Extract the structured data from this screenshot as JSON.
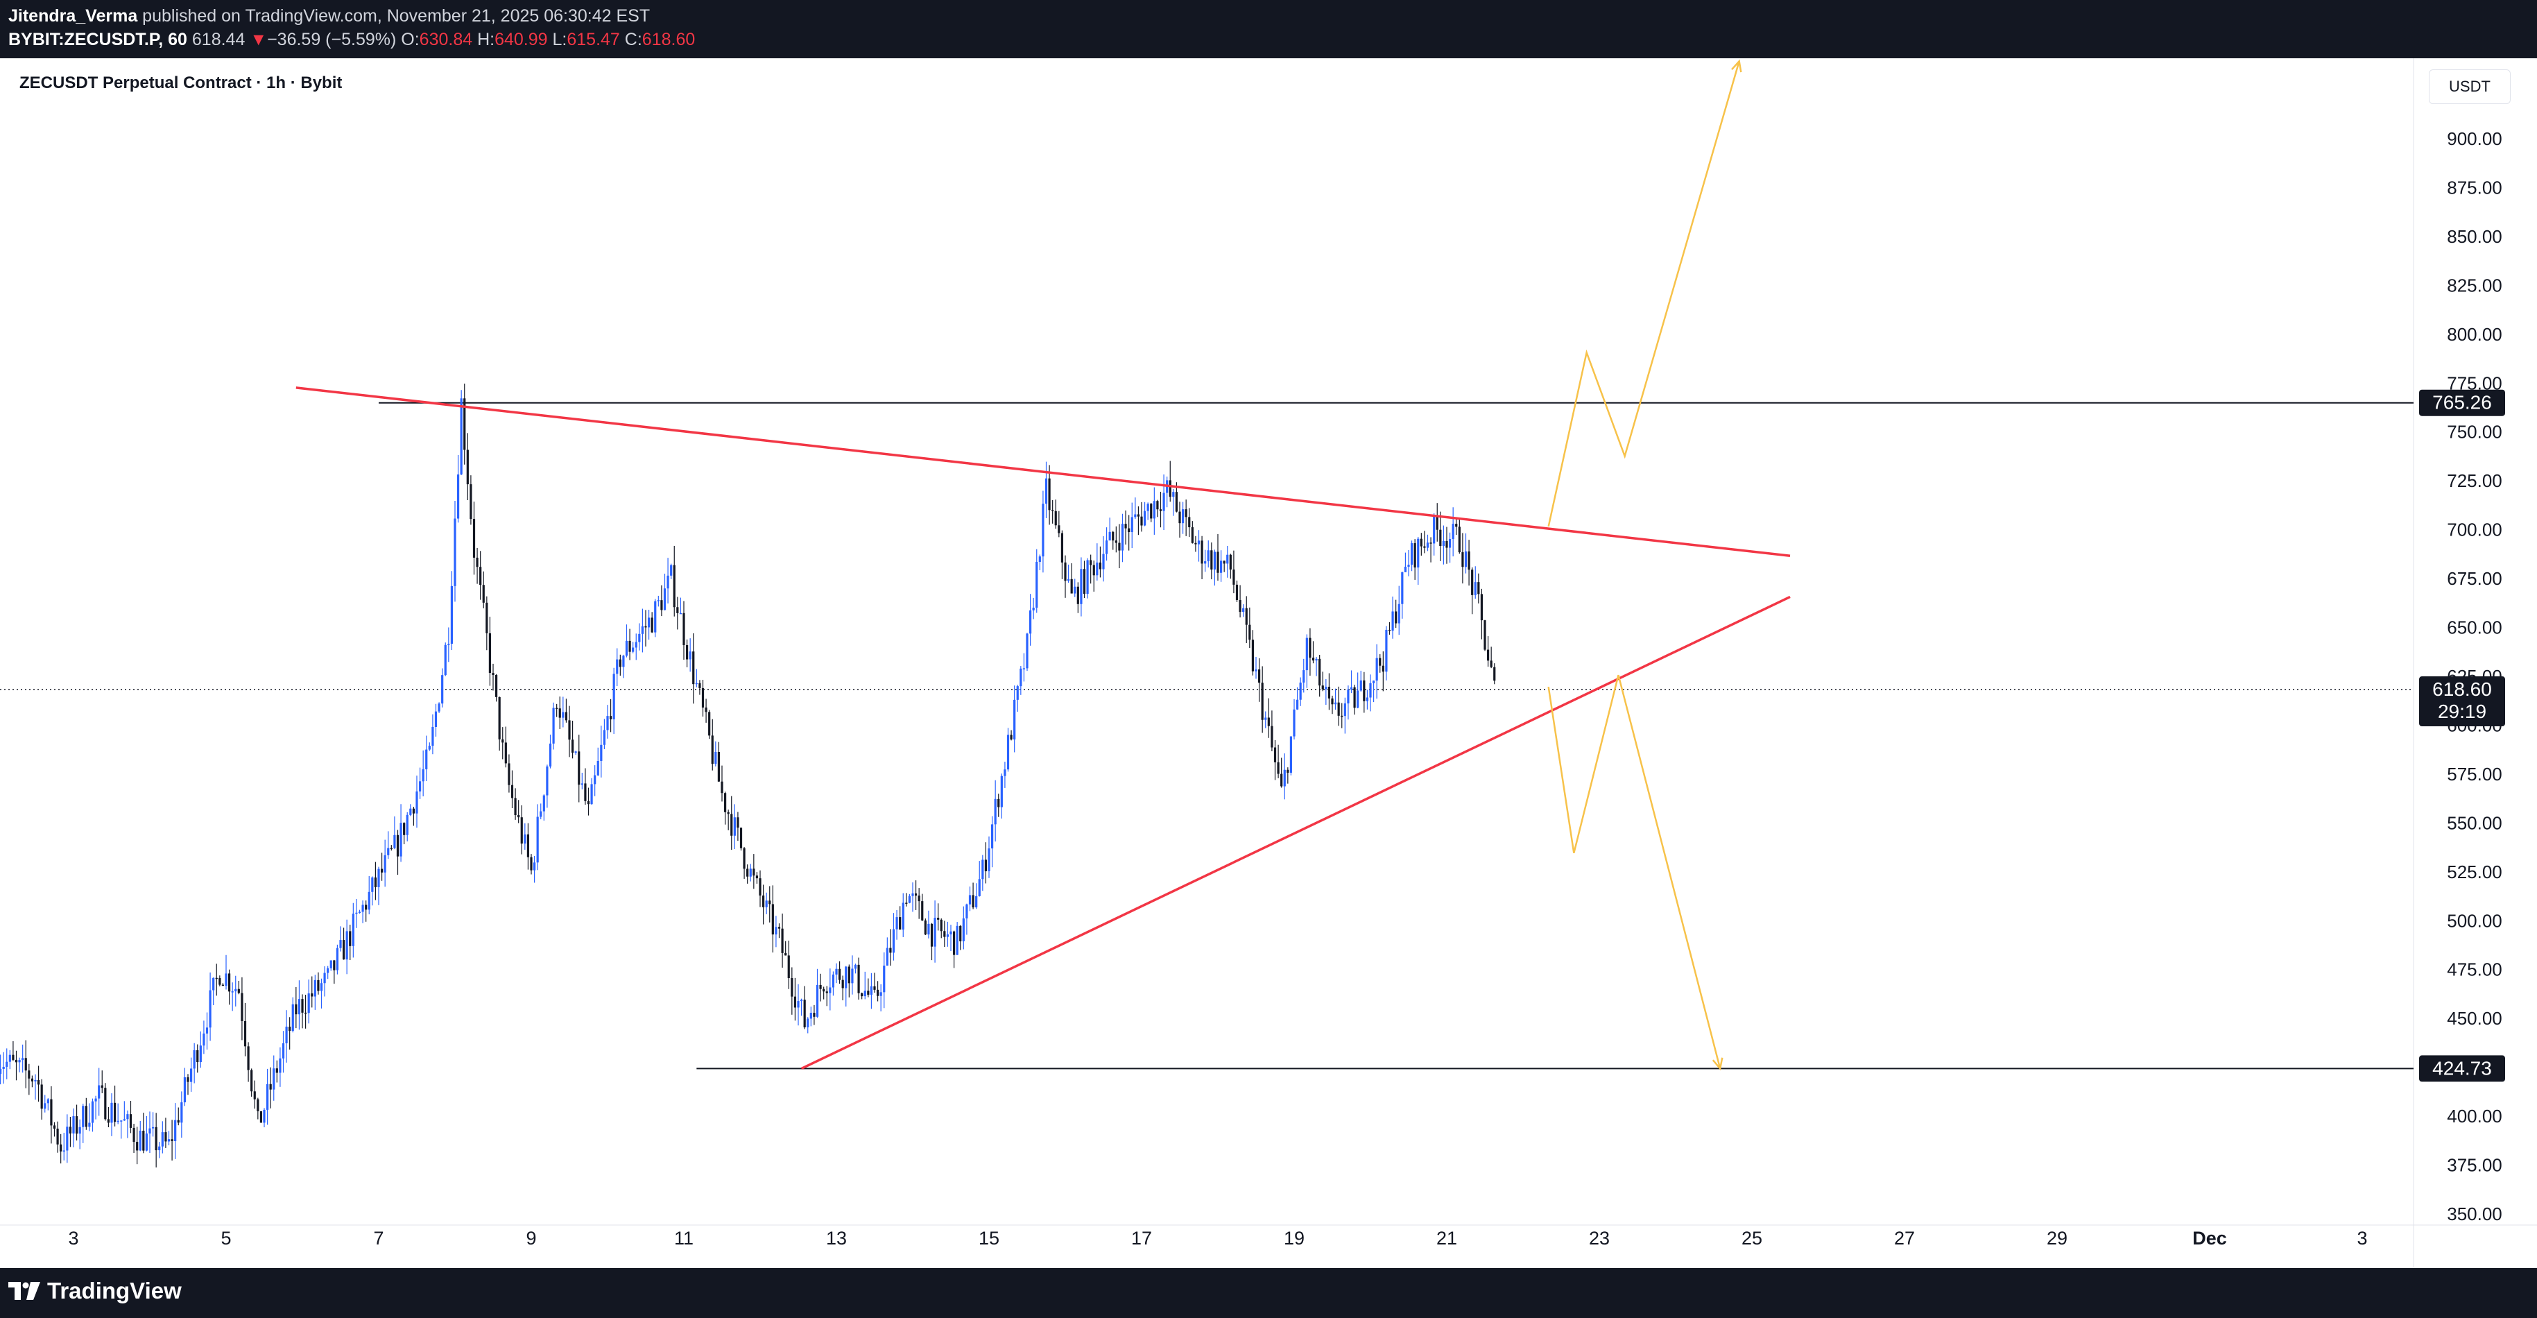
{
  "header": {
    "author": "Jitendra_Verma",
    "published_text": "published on TradingView.com, November 21, 2025 06:30:42 EST",
    "symbol_code": "BYBIT:ZECUSDT.P, 60",
    "last": "618.44",
    "change_arrow": "▼",
    "change": "−36.59 (−5.59%)",
    "open_label": "O:",
    "open": "630.84",
    "high_label": "H:",
    "high": "640.99",
    "low_label": "L:",
    "low": "615.47",
    "close_label": "C:",
    "close": "618.60"
  },
  "chart_title": "ZECUSDT Perpetual Contract · 1h · Bybit",
  "currency": "USDT",
  "brand": {
    "name": "TradingView",
    "logo_icon": "tradingview-logo-icon"
  },
  "colors": {
    "frame": "#131722",
    "up_candle": "#2962ff",
    "down_candle": "#131722",
    "trendline": "#f23645",
    "projection": "#f7c24a",
    "level_line": "#131722",
    "axis_text": "#131722"
  },
  "chart_data": {
    "type": "candlestick",
    "symbol": "ZECUSDT",
    "interval": "1h",
    "ylim": [
      340,
      940
    ],
    "y_ticks": [
      "350.00",
      "375.00",
      "400.00",
      "425.00",
      "450.00",
      "475.00",
      "500.00",
      "525.00",
      "550.00",
      "575.00",
      "600.00",
      "625.00",
      "650.00",
      "675.00",
      "700.00",
      "725.00",
      "750.00",
      "775.00",
      "800.00",
      "825.00",
      "850.00",
      "875.00",
      "900.00"
    ],
    "x_tick_labels": [
      "3",
      "5",
      "7",
      "9",
      "11",
      "13",
      "15",
      "17",
      "19",
      "21",
      "23",
      "25",
      "27",
      "29",
      "Dec",
      "3"
    ],
    "price_path": [
      [
        "2025-11-02T00:00",
        430
      ],
      [
        "2025-11-02T12:00",
        420
      ],
      [
        "2025-11-02T20:00",
        385
      ],
      [
        "2025-11-03T08:00",
        410
      ],
      [
        "2025-11-03T20:00",
        390
      ],
      [
        "2025-11-04T06:00",
        385
      ],
      [
        "2025-11-04T14:00",
        430
      ],
      [
        "2025-11-04T22:00",
        475
      ],
      [
        "2025-11-05T04:00",
        465
      ],
      [
        "2025-11-05T10:00",
        395
      ],
      [
        "2025-11-05T22:00",
        455
      ],
      [
        "2025-11-06T08:00",
        470
      ],
      [
        "2025-11-06T20:00",
        510
      ],
      [
        "2025-11-07T06:00",
        540
      ],
      [
        "2025-11-07T16:00",
        585
      ],
      [
        "2025-11-07T22:00",
        650
      ],
      [
        "2025-11-08T02:00",
        765.26
      ],
      [
        "2025-11-08T06:00",
        690
      ],
      [
        "2025-11-08T16:00",
        575
      ],
      [
        "2025-11-09T00:00",
        525
      ],
      [
        "2025-11-09T08:00",
        615
      ],
      [
        "2025-11-09T18:00",
        555
      ],
      [
        "2025-11-10T04:00",
        635
      ],
      [
        "2025-11-10T14:00",
        655
      ],
      [
        "2025-11-10T20:00",
        675
      ],
      [
        "2025-11-11T04:00",
        620
      ],
      [
        "2025-11-11T12:00",
        565
      ],
      [
        "2025-11-11T22:00",
        520
      ],
      [
        "2025-11-12T06:00",
        490
      ],
      [
        "2025-11-12T14:00",
        448
      ],
      [
        "2025-11-12T20:00",
        470
      ],
      [
        "2025-11-13T04:00",
        475
      ],
      [
        "2025-11-13T12:00",
        458
      ],
      [
        "2025-11-13T22:00",
        515
      ],
      [
        "2025-11-14T06:00",
        495
      ],
      [
        "2025-11-14T14:00",
        490
      ],
      [
        "2025-11-14T22:00",
        525
      ],
      [
        "2025-11-15T06:00",
        590
      ],
      [
        "2025-11-15T12:00",
        640
      ],
      [
        "2025-11-15T18:00",
        720
      ],
      [
        "2025-11-16T02:00",
        665
      ],
      [
        "2025-11-16T12:00",
        690
      ],
      [
        "2025-11-16T22:00",
        705
      ],
      [
        "2025-11-17T08:00",
        720
      ],
      [
        "2025-11-17T18:00",
        690
      ],
      [
        "2025-11-18T04:00",
        680
      ],
      [
        "2025-11-18T12:00",
        625
      ],
      [
        "2025-11-18T20:00",
        565
      ],
      [
        "2025-11-19T04:00",
        640
      ],
      [
        "2025-11-19T12:00",
        605
      ],
      [
        "2025-11-19T20:00",
        615
      ],
      [
        "2025-11-20T04:00",
        635
      ],
      [
        "2025-11-20T12:00",
        685
      ],
      [
        "2025-11-20T20:00",
        700
      ],
      [
        "2025-11-21T04:00",
        695
      ],
      [
        "2025-11-21T10:00",
        660
      ],
      [
        "2025-11-21T15:00",
        618.6
      ]
    ],
    "horizontal_levels": [
      {
        "price": 765.26,
        "label": "765.26"
      },
      {
        "price": 424.73,
        "label": "424.73"
      }
    ],
    "current_price": {
      "price": 618.6,
      "label": "618.60",
      "countdown": "29:19"
    },
    "drawings": {
      "descending_trendline": {
        "from": [
          "2025-11-05T22:00",
          773
        ],
        "to": [
          "2025-11-25T12:00",
          687
        ]
      },
      "ascending_trendline": {
        "from": [
          "2025-11-12T13:00",
          424.73
        ],
        "to": [
          "2025-11-25T12:00",
          666
        ]
      },
      "bullish_projection": [
        [
          "2025-11-22T08:00",
          702
        ],
        [
          "2025-11-22T20:00",
          791
        ],
        [
          "2025-11-23T08:00",
          738
        ],
        [
          "2025-11-24T20:00",
          940
        ]
      ],
      "bearish_projection": [
        [
          "2025-11-22T08:00",
          620
        ],
        [
          "2025-11-22T16:00",
          535
        ],
        [
          "2025-11-23T06:00",
          626
        ],
        [
          "2025-11-24T14:00",
          424.73
        ]
      ]
    }
  }
}
